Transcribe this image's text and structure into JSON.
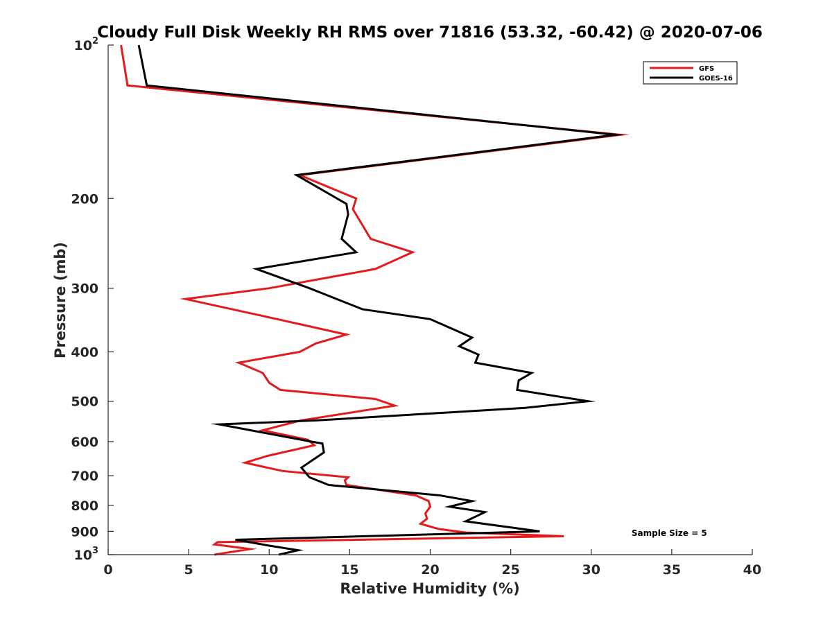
{
  "chart_data": {
    "type": "line",
    "title": "Cloudy Full Disk Weekly RH RMS over 71816 (53.32, -60.42) @ 2020-07-06",
    "xlabel": "Relative Humidity (%)",
    "ylabel": "Pressure (mb)",
    "xlim": [
      0,
      40
    ],
    "ylim": [
      100,
      1000
    ],
    "y_scale": "log",
    "y_reversed": true,
    "x_ticks": [
      0,
      5,
      10,
      15,
      20,
      25,
      30,
      35,
      40
    ],
    "x_tick_labels": [
      "0",
      "5",
      "10",
      "15",
      "20",
      "25",
      "30",
      "35",
      "40"
    ],
    "y_ticks": [
      {
        "value": 100,
        "base": "10",
        "exp": "2"
      },
      {
        "value": 200,
        "label": "200"
      },
      {
        "value": 300,
        "label": "300"
      },
      {
        "value": 400,
        "label": "400"
      },
      {
        "value": 500,
        "label": "500"
      },
      {
        "value": 600,
        "label": "600"
      },
      {
        "value": 700,
        "label": "700"
      },
      {
        "value": 800,
        "label": "800"
      },
      {
        "value": 900,
        "label": "900"
      },
      {
        "value": 1000,
        "base": "10",
        "exp": "3"
      }
    ],
    "legend_position": "top-right",
    "series": [
      {
        "name": "GFS",
        "color": "#e41a1c",
        "points": [
          [
            0.8,
            100
          ],
          [
            1.2,
            120
          ],
          [
            31.8,
            150
          ],
          [
            11.9,
            180
          ],
          [
            15.4,
            200
          ],
          [
            15.2,
            210
          ],
          [
            16.3,
            240
          ],
          [
            18.9,
            255
          ],
          [
            16.6,
            275
          ],
          [
            10.0,
            300
          ],
          [
            4.8,
            315
          ],
          [
            10.5,
            345
          ],
          [
            14.8,
            370
          ],
          [
            12.9,
            385
          ],
          [
            11.9,
            400
          ],
          [
            8.1,
            420
          ],
          [
            9.6,
            440
          ],
          [
            10.0,
            460
          ],
          [
            10.7,
            475
          ],
          [
            16.6,
            495
          ],
          [
            17.8,
            510
          ],
          [
            12.0,
            545
          ],
          [
            9.6,
            570
          ],
          [
            12.4,
            595
          ],
          [
            12.8,
            610
          ],
          [
            9.9,
            640
          ],
          [
            8.5,
            660
          ],
          [
            10.8,
            685
          ],
          [
            14.9,
            705
          ],
          [
            14.7,
            715
          ],
          [
            14.8,
            730
          ],
          [
            19.1,
            765
          ],
          [
            19.9,
            785
          ],
          [
            20.0,
            805
          ],
          [
            19.7,
            830
          ],
          [
            19.8,
            850
          ],
          [
            19.4,
            870
          ],
          [
            20.5,
            890
          ],
          [
            22.2,
            905
          ],
          [
            28.3,
            920
          ],
          [
            6.8,
            945
          ],
          [
            6.6,
            955
          ],
          [
            8.8,
            975
          ],
          [
            6.6,
            1000
          ]
        ]
      },
      {
        "name": "GOES-16",
        "color": "#000000",
        "points": [
          [
            1.9,
            100
          ],
          [
            2.4,
            120
          ],
          [
            31.5,
            150
          ],
          [
            11.7,
            180
          ],
          [
            14.8,
            205
          ],
          [
            14.9,
            215
          ],
          [
            14.5,
            240
          ],
          [
            15.4,
            255
          ],
          [
            9.2,
            275
          ],
          [
            12.5,
            300
          ],
          [
            15.8,
            330
          ],
          [
            20.0,
            345
          ],
          [
            22.6,
            375
          ],
          [
            21.8,
            390
          ],
          [
            23.0,
            405
          ],
          [
            22.8,
            420
          ],
          [
            26.3,
            440
          ],
          [
            25.5,
            455
          ],
          [
            25.4,
            475
          ],
          [
            29.8,
            500
          ],
          [
            25.9,
            515
          ],
          [
            13.0,
            545
          ],
          [
            6.9,
            555
          ],
          [
            12.6,
            600
          ],
          [
            13.3,
            605
          ],
          [
            13.4,
            630
          ],
          [
            12.0,
            675
          ],
          [
            12.5,
            705
          ],
          [
            13.7,
            730
          ],
          [
            20.6,
            765
          ],
          [
            22.6,
            785
          ],
          [
            21.2,
            805
          ],
          [
            23.4,
            825
          ],
          [
            22.2,
            860
          ],
          [
            26.8,
            900
          ],
          [
            7.9,
            935
          ],
          [
            10.0,
            960
          ],
          [
            11.8,
            980
          ],
          [
            10.6,
            1000
          ]
        ]
      }
    ],
    "annotations": [
      {
        "text": "Sample Size = 5",
        "x": 35,
        "p": 905
      }
    ]
  }
}
